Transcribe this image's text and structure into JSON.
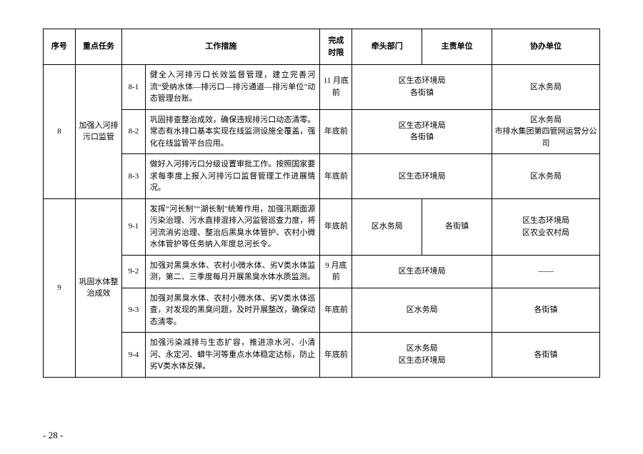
{
  "headers": {
    "seq": "序号",
    "key_task": "重点任务",
    "measure": "工作措施",
    "deadline": "完成\n时限",
    "lead_dept": "牵头部门",
    "resp_unit": "主责单位",
    "assist_unit": "协办单位"
  },
  "col_widths": {
    "seq": "5.5%",
    "key_task": "8%",
    "sub": "4%",
    "measure": "30%",
    "deadline": "5.5%",
    "lead_dept": "12%",
    "resp_unit": "12%",
    "assist_unit": "18.5%"
  },
  "rows": [
    {
      "seq": "8",
      "key_task": "加强入河排污口监管",
      "sub_rows": [
        {
          "sub_id": "8-1",
          "measure": "健全入河排污口长效监督管理，建立完善河流“受纳水体—排污口—排污通道—排污单位”动态管理台账。",
          "deadline": "11 月底前",
          "lead_dept_span": "区生态环境局\n各街镇",
          "assist_unit": "区水务局"
        },
        {
          "sub_id": "8-2",
          "measure": "巩固排查整治成效，确保违规排污口动态清零。常态有水排口基本实现在线监测设施全覆盖，强化在线监管平台应用。",
          "deadline": "年底前",
          "lead_dept_span": "区生态环境局\n各街镇",
          "assist_unit": "区水务局\n市排水集团第四管网运营分公司"
        },
        {
          "sub_id": "8-3",
          "measure": "做好入河排污口分级设置审批工作。按照国家要求每季度上报入河排污口监督管理工作进展情况。",
          "deadline": "年底前",
          "lead_dept_span": "区生态环境局",
          "assist_unit": "区水务局"
        }
      ]
    },
    {
      "seq": "9",
      "key_task": "巩固水体整治成效",
      "sub_rows": [
        {
          "sub_id": "9-1",
          "measure": "发挥“河长制”“湖长制”统筹作用，加强汛期面源污染治理、污水直排混排入河监管巡查力度，将河流消劣治理、整治后黑臭水体管护、农村小微水体管护等任务纳入年度总河长令。",
          "deadline": "年底前",
          "lead_dept": "区水务局",
          "resp_unit": "各街镇",
          "assist_unit": "区生态环境局\n区农业农村局"
        },
        {
          "sub_id": "9-2",
          "measure": "加强对黑臭水体、农村小微水体、劣Ⅴ类水体监测，第二、三季度每月开展黑臭水体水质监测。",
          "deadline": "9 月底前",
          "lead_dept_span": "区生态环境局",
          "assist_unit": "——"
        },
        {
          "sub_id": "9-3",
          "measure": "加强对黑臭水体、农村小微水体、劣Ⅴ类水体巡查，对发现的黑臭问题，及时开展整改，确保动态清零。",
          "deadline": "年底前",
          "lead_dept_span": "区水务局",
          "assist_unit": "各街镇"
        },
        {
          "sub_id": "9-4",
          "measure": "加强污染减排与生态扩容，推进凉水河、小清河、永定河、蟒牛河等重点水体稳定达标，防止劣Ⅴ类水体反弹。",
          "deadline": "年底前",
          "lead_dept_span": "区水务局\n区生态环境局",
          "assist_unit": "各街镇"
        }
      ]
    }
  ],
  "page_number": "- 28 -"
}
